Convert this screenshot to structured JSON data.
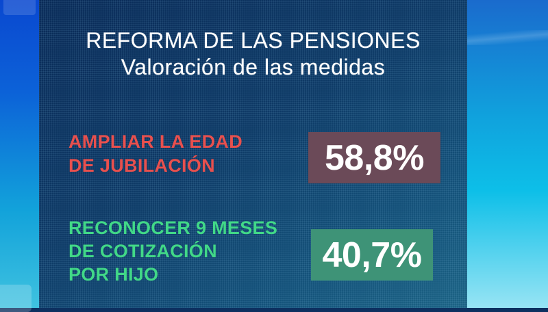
{
  "header": {
    "title_line1": "REFORMA DE LAS PENSIONES",
    "title_line2": "Valoración de las medidas"
  },
  "measures": [
    {
      "label": "AMPLIAR LA EDAD\nDE JUBILACIÓN",
      "value": "58,8%",
      "label_color": "#e8504e",
      "box_color": "#6b4a58"
    },
    {
      "label": "RECONOCER 9 MESES\nDE COTIZACIÓN\nPOR HIJO",
      "value": "40,7%",
      "label_color": "#41d888",
      "box_color": "#3e9377"
    }
  ],
  "scene_colors": {
    "panel_top": "#0a2b58",
    "panel_bottom": "#1c6384",
    "left_band_top": "#0a48d0",
    "left_band_bottom": "#3fc2e0",
    "right_band_top": "#1a6bcd",
    "right_band_bottom": "#97e4f4",
    "title_text": "#ffffff",
    "value_text": "#ffffff"
  },
  "chart_data": {
    "type": "table",
    "title": "REFORMA DE LAS PENSIONES",
    "subtitle": "Valoración de las medidas",
    "categories": [
      "AMPLIAR LA EDAD DE JUBILACIÓN",
      "RECONOCER 9 MESES DE COTIZACIÓN POR HIJO"
    ],
    "values": [
      58.8,
      40.7
    ],
    "unit": "%",
    "value_labels": [
      "58,8%",
      "40,7%"
    ],
    "category_colors": [
      "#e8504e",
      "#41d888"
    ],
    "value_box_colors": [
      "#6b4a58",
      "#3e9377"
    ]
  }
}
